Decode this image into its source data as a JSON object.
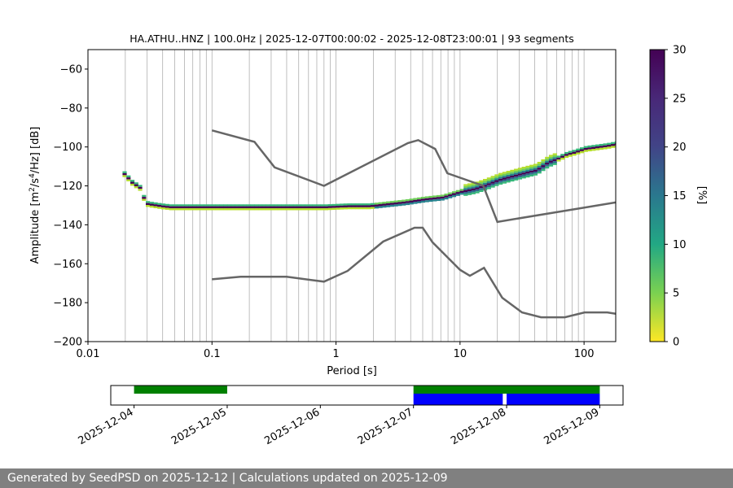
{
  "chart_data": [
    {
      "type": "heatmap",
      "title": "HA.ATHU..HNZ | 100.0Hz | 2025-12-07T00:00:02 - 2025-12-08T23:00:01 | 93 segments",
      "xlabel": "Period [s]",
      "ylabel_main": "Amplitude [m",
      "ylabel_sup1": "2",
      "ylabel_mid": "/s",
      "ylabel_sup2": "4",
      "ylabel_end": "/Hz] [dB]",
      "x_scale": "log",
      "xlim": [
        0.01,
        180
      ],
      "ylim": [
        -200,
        -50
      ],
      "x_ticks": [
        {
          "value": 0.01,
          "label": "0.01"
        },
        {
          "value": 0.1,
          "label": "0.1"
        },
        {
          "value": 1,
          "label": "1"
        },
        {
          "value": 10,
          "label": "10"
        },
        {
          "value": 100,
          "label": "100"
        }
      ],
      "y_ticks": [
        {
          "value": -60,
          "label": "−60"
        },
        {
          "value": -80,
          "label": "−80"
        },
        {
          "value": -100,
          "label": "−100"
        },
        {
          "value": -120,
          "label": "−120"
        },
        {
          "value": -140,
          "label": "−140"
        },
        {
          "value": -160,
          "label": "−160"
        },
        {
          "value": -180,
          "label": "−180"
        },
        {
          "value": -200,
          "label": "−200"
        }
      ],
      "grid": "vertical",
      "noise_models": [
        {
          "points": [
            [
              0.1,
              -91.5
            ],
            [
              0.22,
              -97.4
            ],
            [
              0.32,
              -110.5
            ],
            [
              0.8,
              -120
            ],
            [
              3.8,
              -98
            ],
            [
              4.6,
              -96.5
            ],
            [
              6.3,
              -101
            ],
            [
              7.9,
              -113.5
            ],
            [
              15.4,
              -120
            ],
            [
              20,
              -138.5
            ],
            [
              180,
              -128.5
            ]
          ]
        },
        {
          "points": [
            [
              0.1,
              -168
            ],
            [
              0.17,
              -166.7
            ],
            [
              0.4,
              -166.7
            ],
            [
              0.8,
              -169.2
            ],
            [
              1.24,
              -163.7
            ],
            [
              2.4,
              -148.6
            ],
            [
              4.3,
              -141.5
            ],
            [
              5,
              -141.5
            ],
            [
              6,
              -149
            ],
            [
              10,
              -163.1
            ],
            [
              12,
              -166.2
            ],
            [
              15.6,
              -162.1
            ],
            [
              21.9,
              -177.5
            ],
            [
              31.6,
              -185
            ],
            [
              45,
              -187.5
            ],
            [
              70,
              -187.5
            ],
            [
              101,
              -185
            ],
            [
              154,
              -185
            ],
            [
              180,
              -185.7
            ]
          ]
        }
      ],
      "ppsd_mode": [
        [
          0.019,
          -114
        ],
        [
          0.02,
          -115.5
        ],
        [
          0.021,
          -117
        ],
        [
          0.022,
          -118.5
        ],
        [
          0.024,
          -120
        ],
        [
          0.026,
          -121.5
        ],
        [
          0.028,
          -129
        ],
        [
          0.03,
          -129.5
        ],
        [
          0.034,
          -130
        ],
        [
          0.038,
          -130.5
        ],
        [
          0.045,
          -131
        ],
        [
          0.06,
          -131
        ],
        [
          0.1,
          -131
        ],
        [
          0.2,
          -131
        ],
        [
          0.4,
          -131
        ],
        [
          0.8,
          -131
        ],
        [
          1.2,
          -130.5
        ],
        [
          1.8,
          -130.5
        ],
        [
          2.5,
          -129.5
        ],
        [
          3.5,
          -128.5
        ],
        [
          5,
          -127
        ],
        [
          7,
          -126
        ],
        [
          10,
          -123
        ],
        [
          13,
          -121.5
        ],
        [
          16,
          -119.5
        ],
        [
          20,
          -117
        ],
        [
          30,
          -114
        ],
        [
          40,
          -112
        ],
        [
          50,
          -108
        ],
        [
          60,
          -106
        ],
        [
          70,
          -104
        ],
        [
          80,
          -103
        ],
        [
          100,
          -101
        ],
        [
          150,
          -99.5
        ],
        [
          180,
          -98.5
        ]
      ],
      "colorbar": {
        "label": "[%]",
        "range": [
          0,
          30
        ],
        "ticks": [
          "0",
          "5",
          "10",
          "15",
          "20",
          "25",
          "30"
        ],
        "colormap": "viridis_r"
      }
    },
    {
      "type": "timeline",
      "x_tick_labels": [
        "2025-12-04",
        "2025-12-05",
        "2025-12-06",
        "2025-12-07",
        "2025-12-08",
        "2025-12-09"
      ],
      "xlim": [
        "2025-12-03T18:00",
        "2025-12-09T06:00"
      ],
      "tracks": [
        {
          "color": "#008000",
          "segments": [
            [
              "2025-12-04T00:00",
              "2025-12-05T00:00"
            ],
            [
              "2025-12-07T00:00",
              "2025-12-09T00:00"
            ]
          ]
        },
        {
          "color": "#0000ff",
          "segments": [
            [
              "2025-12-07T00:00",
              "2025-12-07T23:00"
            ],
            [
              "2025-12-08T00:00",
              "2025-12-09T00:00"
            ]
          ]
        }
      ]
    }
  ],
  "footer": "Generated by SeedPSD on 2025-12-12 | Calculations updated on 2025-12-09"
}
